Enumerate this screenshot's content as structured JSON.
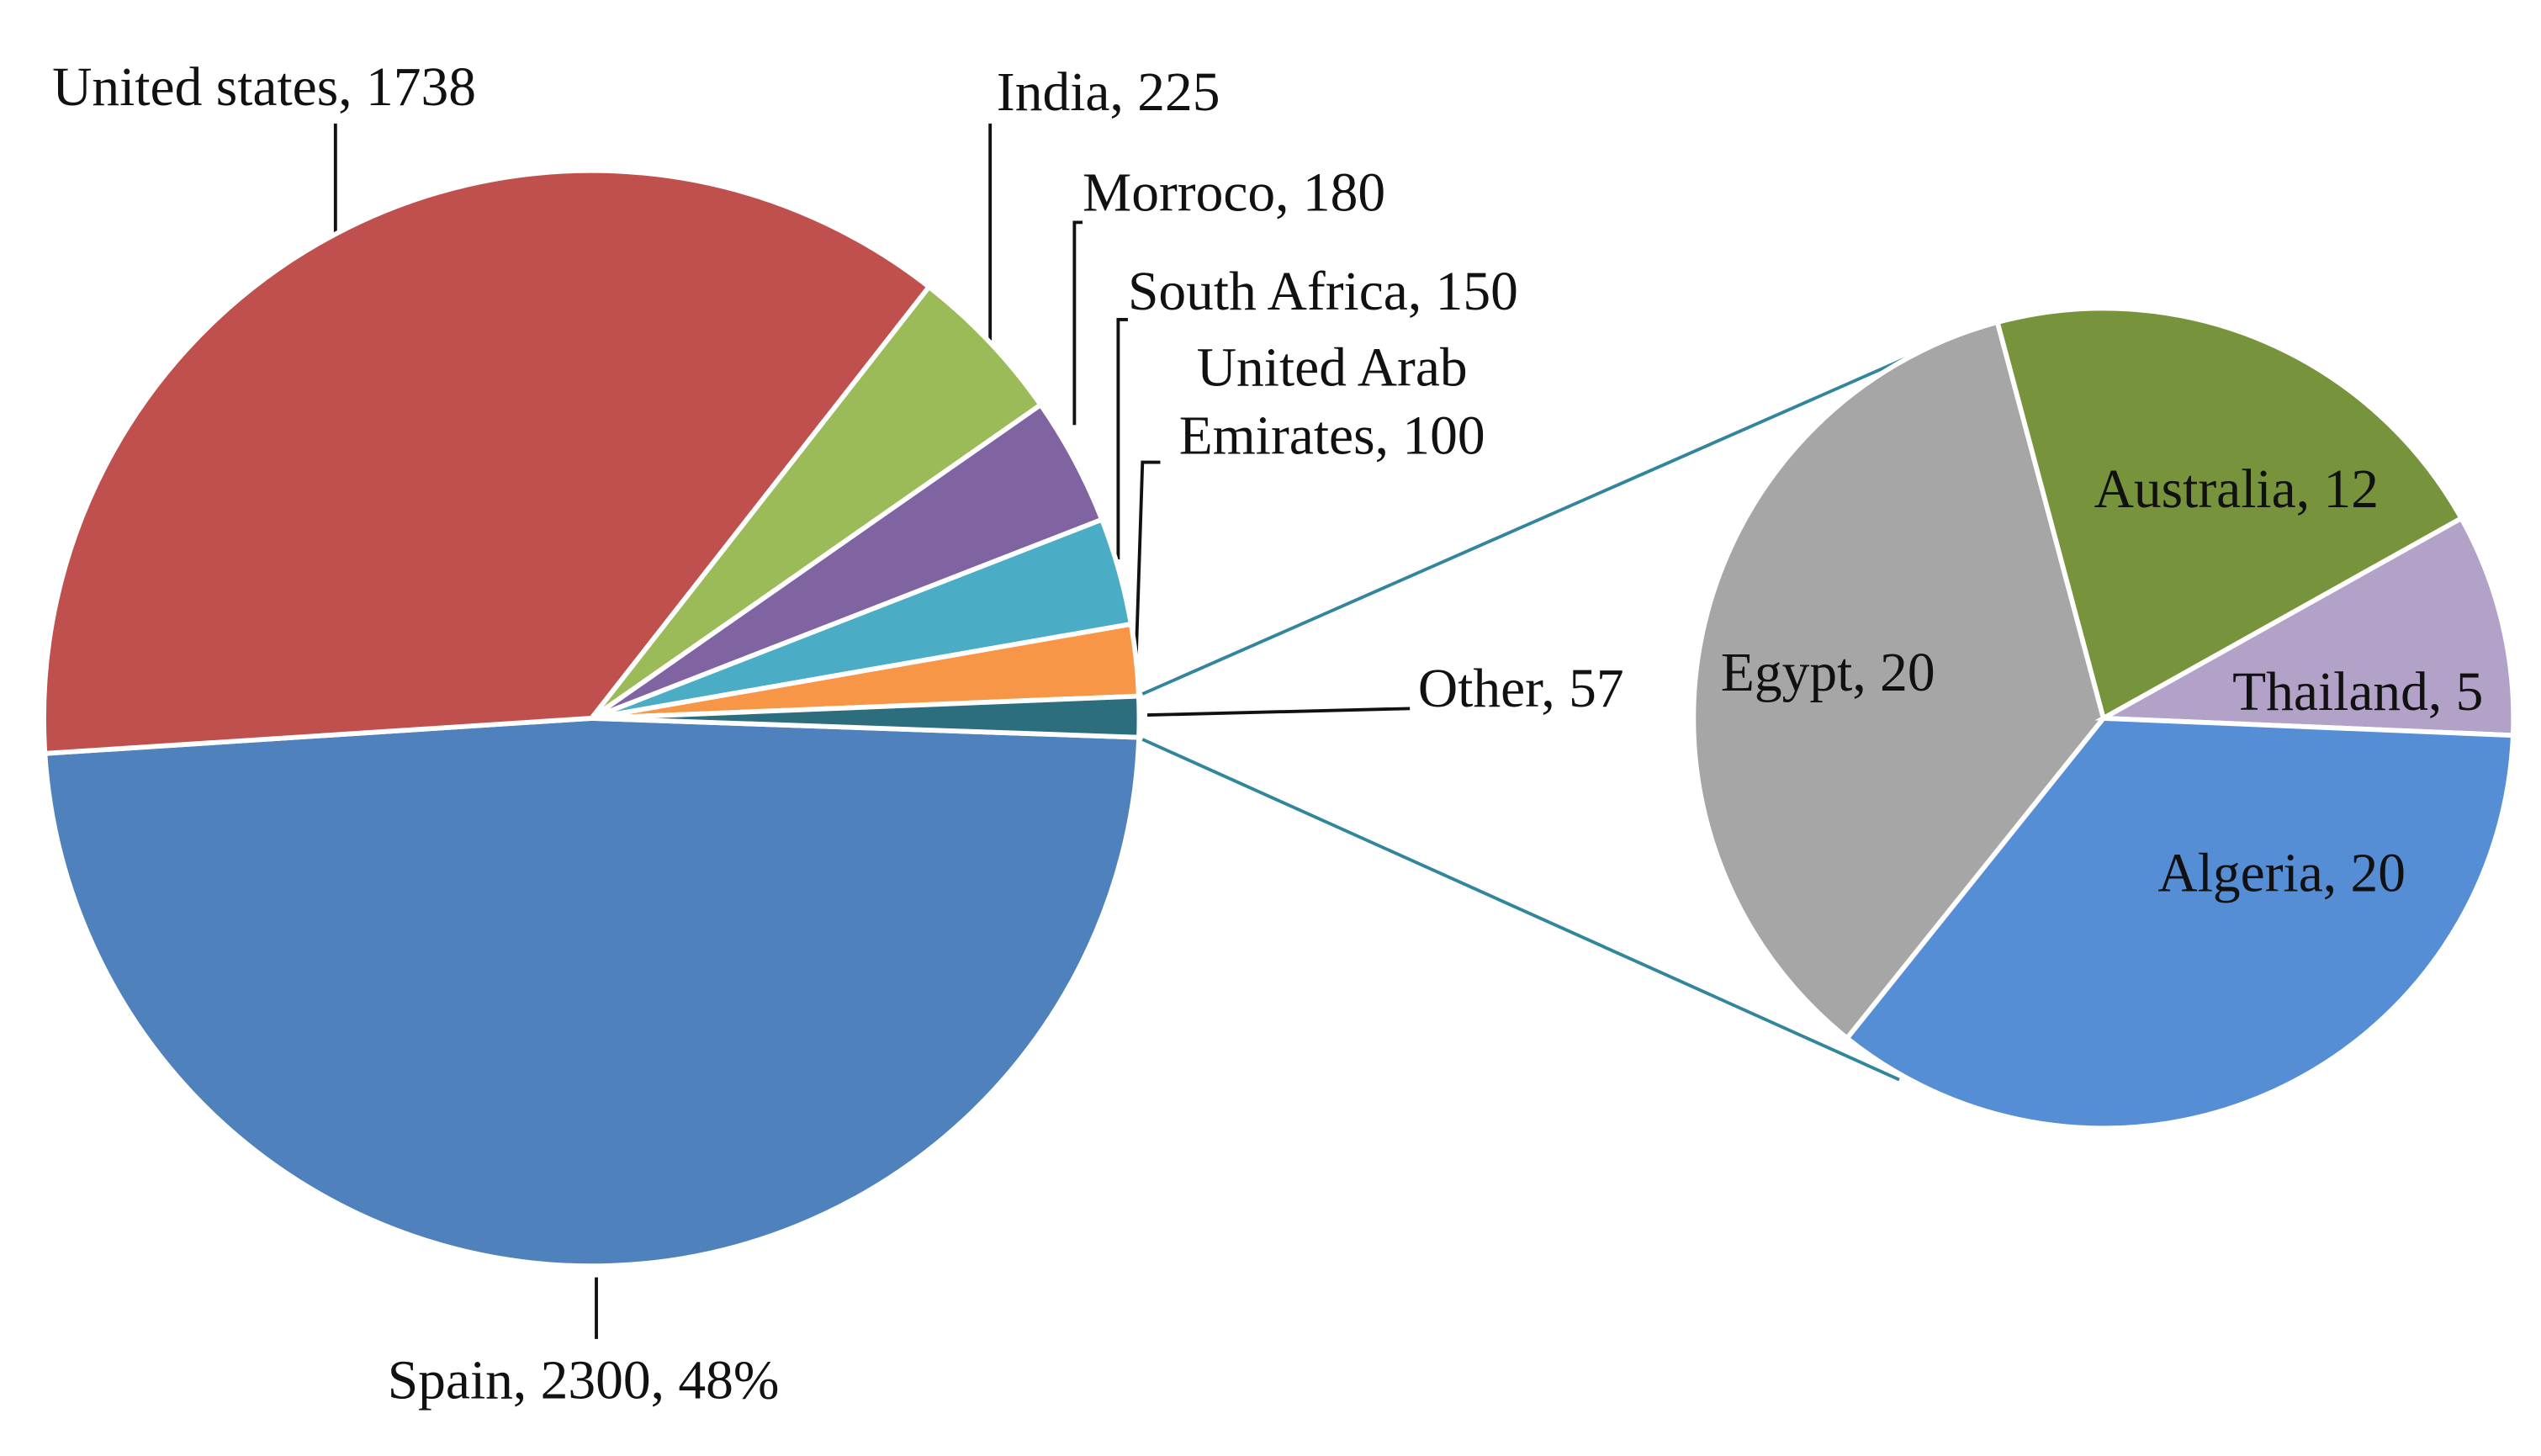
{
  "chart_data": [
    {
      "type": "pie",
      "categories": [
        "Spain, 2300, 48%",
        "United states, 1738",
        "India, 225",
        "Morroco, 180",
        "South Africa, 150",
        "United Arab\nEmirates, 100",
        "Other, 57"
      ],
      "values": [
        2300,
        1738,
        225,
        180,
        150,
        100,
        57
      ],
      "colors": [
        "#4f81bd",
        "#c0504d",
        "#9bbb59",
        "#8064a2",
        "#4bacc6",
        "#f79646",
        "#2c6d7e"
      ]
    },
    {
      "type": "pie",
      "categories": [
        "Egypt, 20",
        "Australia, 12",
        "Thailand, 5",
        "Algeria, 20"
      ],
      "values": [
        20,
        12,
        5,
        20
      ],
      "colors": [
        "#a6a6a6",
        "#77933c",
        "#b3a2c7",
        "#558ed5"
      ]
    }
  ]
}
